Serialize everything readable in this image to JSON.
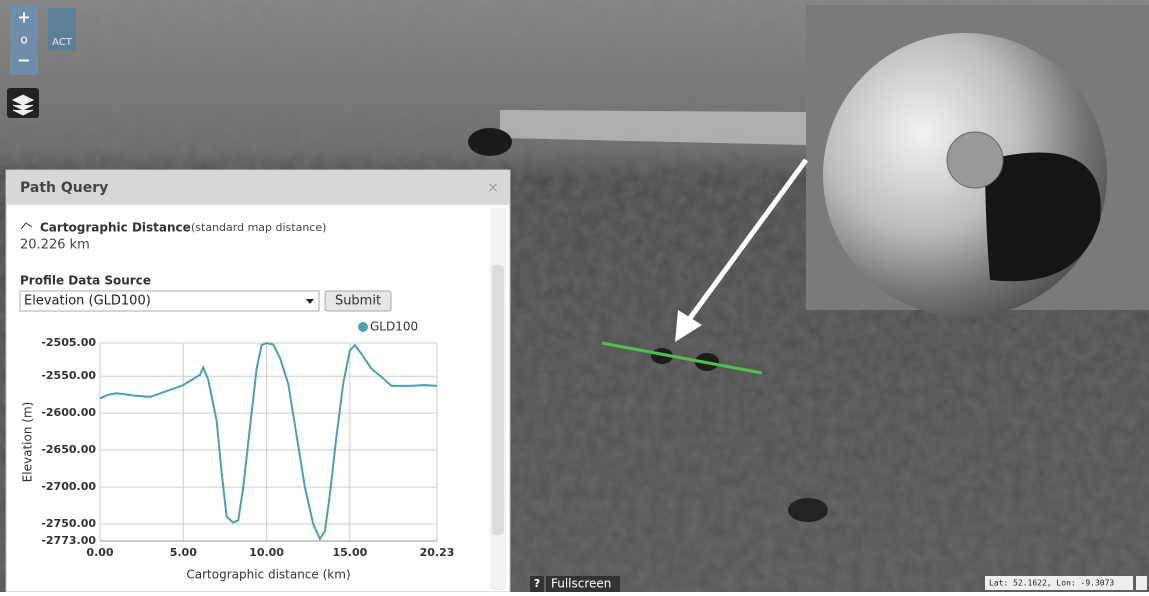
{
  "map": {
    "zoom_in": "+",
    "zoom_reset": "o",
    "zoom_out": "−",
    "logo": "ACT",
    "help": "?",
    "fullscreen": "Fullscreen",
    "coords": "Lat:  52.1622, Lon:  -9.3073"
  },
  "panel": {
    "title": "Path Query",
    "close": "×",
    "distance_label": "Cartographic Distance",
    "distance_note": "(standard map distance)",
    "distance_value": "20.226 km",
    "source_label": "Profile Data Source",
    "source_option": "Elevation (GLD100)",
    "submit": "Submit"
  },
  "chart_data": {
    "type": "line",
    "x_label": "Cartographic distance (km)",
    "y_label": "Elevation (m)",
    "x": [
      0,
      0.5,
      1,
      2,
      3,
      4,
      5,
      5.5,
      6,
      6.2,
      6.5,
      7,
      7.3,
      7.6,
      8,
      8.3,
      8.6,
      9,
      9.4,
      9.7,
      10,
      10.4,
      10.8,
      11.3,
      11.8,
      12.3,
      12.8,
      13.2,
      13.5,
      13.8,
      14.2,
      14.6,
      15,
      15.3,
      15.7,
      16.3,
      17,
      17.5,
      18.5,
      19.5,
      20.23
    ],
    "series": [
      {
        "name": "GLD100",
        "color": "#4a9fb0",
        "values": [
          -2580,
          -2575,
          -2573,
          -2576,
          -2578,
          -2570,
          -2562,
          -2555,
          -2548,
          -2538,
          -2555,
          -2610,
          -2680,
          -2740,
          -2748,
          -2745,
          -2700,
          -2620,
          -2540,
          -2508,
          -2505,
          -2507,
          -2525,
          -2560,
          -2630,
          -2700,
          -2750,
          -2770,
          -2760,
          -2710,
          -2630,
          -2560,
          -2515,
          -2508,
          -2520,
          -2540,
          -2553,
          -2563,
          -2563,
          -2562,
          -2563
        ]
      }
    ],
    "xlim": [
      0,
      20.23
    ],
    "xticks": [
      {
        "value": 0,
        "label": "0.00"
      },
      {
        "value": 5,
        "label": "5.00"
      },
      {
        "value": 10,
        "label": "10.00"
      },
      {
        "value": 15,
        "label": "15.00"
      },
      {
        "value": 20.23,
        "label": "20.23"
      }
    ],
    "ylim": [
      -2773,
      -2505
    ],
    "yticks": [
      {
        "value": -2505,
        "label": "-2505.00"
      },
      {
        "value": -2550,
        "label": "-2550.00"
      },
      {
        "value": -2600,
        "label": "-2600.00"
      },
      {
        "value": -2650,
        "label": "-2650.00"
      },
      {
        "value": -2700,
        "label": "-2700.00"
      },
      {
        "value": -2750,
        "label": "-2750.00"
      },
      {
        "value": -2773,
        "label": "-2773.00"
      }
    ],
    "grid": true
  }
}
